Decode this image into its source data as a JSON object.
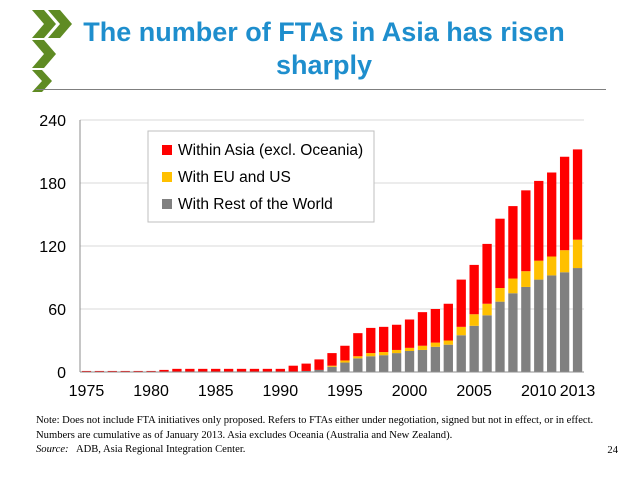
{
  "slide": {
    "title": "The number of FTAs in Asia has risen sharply",
    "page_number": "24",
    "colors": {
      "title": "#1e8ecd",
      "logo": "#5f8b23"
    }
  },
  "footnote": {
    "note_text": "Note:  Does not include FTA  initiatives only proposed. Refers to FTAs either under negotiation, signed but not in effect, or in effect. Numbers are cumulative as of January 2013. Asia excludes Oceania (Australia and New Zealand).",
    "source_label": "Source:",
    "source_text": "ADB, Asia Regional Integration Center."
  },
  "chart_data": {
    "type": "bar",
    "stacked": true,
    "title": "",
    "xlabel": "",
    "ylabel": "",
    "ylim": [
      0,
      240
    ],
    "yticks": [
      0,
      60,
      120,
      180,
      240
    ],
    "xtick_labels": [
      "1975",
      "1980",
      "1985",
      "1990",
      "1995",
      "2000",
      "2005",
      "2010",
      "2013"
    ],
    "legend_position": "top-center",
    "categories": [
      "1975",
      "1976",
      "1977",
      "1978",
      "1979",
      "1980",
      "1981",
      "1982",
      "1983",
      "1984",
      "1985",
      "1986",
      "1987",
      "1988",
      "1989",
      "1990",
      "1991",
      "1992",
      "1993",
      "1994",
      "1995",
      "1996",
      "1997",
      "1998",
      "1999",
      "2000",
      "2001",
      "2002",
      "2003",
      "2004",
      "2005",
      "2006",
      "2007",
      "2008",
      "2009",
      "2010",
      "2011",
      "2012",
      "2013"
    ],
    "series": [
      {
        "name": "With Rest of the World",
        "color": "#808080",
        "values": [
          0,
          0,
          0,
          0,
          0,
          0,
          0,
          0,
          0,
          0,
          0,
          0,
          0,
          0,
          0,
          0,
          0,
          1,
          2,
          5,
          9,
          13,
          15,
          16,
          18,
          20,
          21,
          24,
          26,
          35,
          44,
          54,
          67,
          75,
          81,
          88,
          92,
          95,
          99
        ]
      },
      {
        "name": "With EU and US",
        "color": "#ffc000",
        "values": [
          0,
          0,
          0,
          0,
          0,
          0,
          0,
          0,
          0,
          0,
          0,
          0,
          0,
          0,
          0,
          0,
          0,
          0,
          0,
          1,
          2,
          2,
          3,
          3,
          3,
          3,
          4,
          4,
          4,
          8,
          11,
          11,
          13,
          14,
          15,
          18,
          18,
          21,
          27
        ]
      },
      {
        "name": "Within Asia (excl. Oceania)",
        "color": "#ff0000",
        "values": [
          1,
          1,
          1,
          1,
          1,
          1,
          2,
          3,
          3,
          3,
          3,
          3,
          3,
          3,
          3,
          3,
          6,
          7,
          10,
          12,
          14,
          22,
          24,
          24,
          24,
          27,
          32,
          32,
          35,
          45,
          47,
          57,
          66,
          69,
          77,
          76,
          80,
          89,
          86
        ]
      }
    ],
    "legend_order": [
      "Within Asia (excl. Oceania)",
      "With EU and US",
      "With Rest of the World"
    ]
  }
}
